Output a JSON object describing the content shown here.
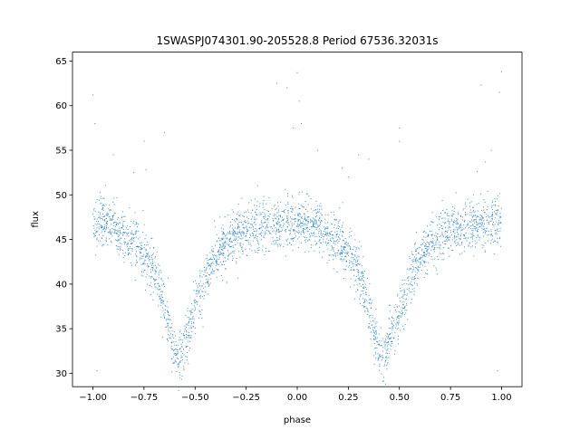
{
  "chart_data": {
    "type": "scatter",
    "title": "1SWASPJ074301.90-205528.8 Period 67536.32031s",
    "xlabel": "phase",
    "ylabel": "flux",
    "xlim": [
      -1.1,
      1.1
    ],
    "ylim": [
      28.5,
      66.0
    ],
    "x_ticks": [
      -1.0,
      -0.75,
      -0.5,
      -0.25,
      0.0,
      0.25,
      0.5,
      0.75,
      1.0
    ],
    "x_tick_labels": [
      "−1.00",
      "−0.75",
      "−0.50",
      "−0.25",
      "0.00",
      "0.25",
      "0.50",
      "0.75",
      "1.00"
    ],
    "y_ticks": [
      30,
      35,
      40,
      45,
      50,
      55,
      60,
      65
    ],
    "y_tick_labels": [
      "30",
      "35",
      "40",
      "45",
      "50",
      "55",
      "60",
      "65"
    ],
    "grid": false,
    "legend": "none",
    "marker_color": "#1f77b4",
    "series": [
      {
        "x": [
          -1.0,
          -0.95,
          -0.9,
          -0.85,
          -0.8,
          -0.75,
          -0.7,
          -0.65,
          -0.62,
          -0.6,
          -0.58,
          -0.55,
          -0.5,
          -0.45,
          -0.4,
          -0.35,
          -0.3,
          -0.25,
          -0.2,
          -0.15,
          -0.1,
          -0.05,
          0.0,
          0.05,
          0.1,
          0.15,
          0.2,
          0.25,
          0.3,
          0.35,
          0.38,
          0.4,
          0.42,
          0.45,
          0.5,
          0.55,
          0.6,
          0.65,
          0.7,
          0.75,
          0.8,
          0.85,
          0.9,
          0.95,
          1.0
        ],
        "y": [
          46.8,
          47.0,
          46.5,
          45.5,
          44.8,
          43.5,
          41.5,
          37.5,
          34.5,
          32.5,
          32.0,
          33.5,
          37.0,
          40.5,
          43.0,
          44.5,
          45.3,
          46.0,
          46.3,
          46.7,
          46.6,
          46.8,
          46.8,
          47.0,
          46.5,
          45.5,
          44.8,
          43.5,
          41.5,
          37.5,
          34.5,
          32.5,
          32.0,
          33.5,
          37.0,
          40.5,
          43.0,
          44.5,
          45.3,
          46.0,
          46.3,
          46.7,
          46.6,
          46.8,
          46.8
        ]
      }
    ],
    "outliers": {
      "x": [
        -1.0,
        -0.99,
        -0.98,
        -0.9,
        -0.75,
        -0.74,
        -0.8,
        -0.1,
        -0.05,
        0.0,
        0.01,
        -0.02,
        0.02,
        0.1,
        0.3,
        0.5,
        0.5,
        1.0,
        0.99,
        0.98,
        0.9,
        0.95,
        0.92,
        0.88,
        -0.65,
        0.35,
        0.25,
        0.22
      ],
      "y": [
        61.2,
        58.0,
        30.3,
        54.5,
        56.0,
        52.8,
        52.5,
        62.5,
        62.0,
        63.7,
        60.5,
        57.5,
        58.0,
        55.0,
        54.5,
        57.5,
        56.0,
        63.8,
        61.5,
        30.3,
        62.3,
        55.0,
        53.7,
        52.6,
        57.0,
        54.0,
        52.0,
        53.0
      ]
    }
  }
}
